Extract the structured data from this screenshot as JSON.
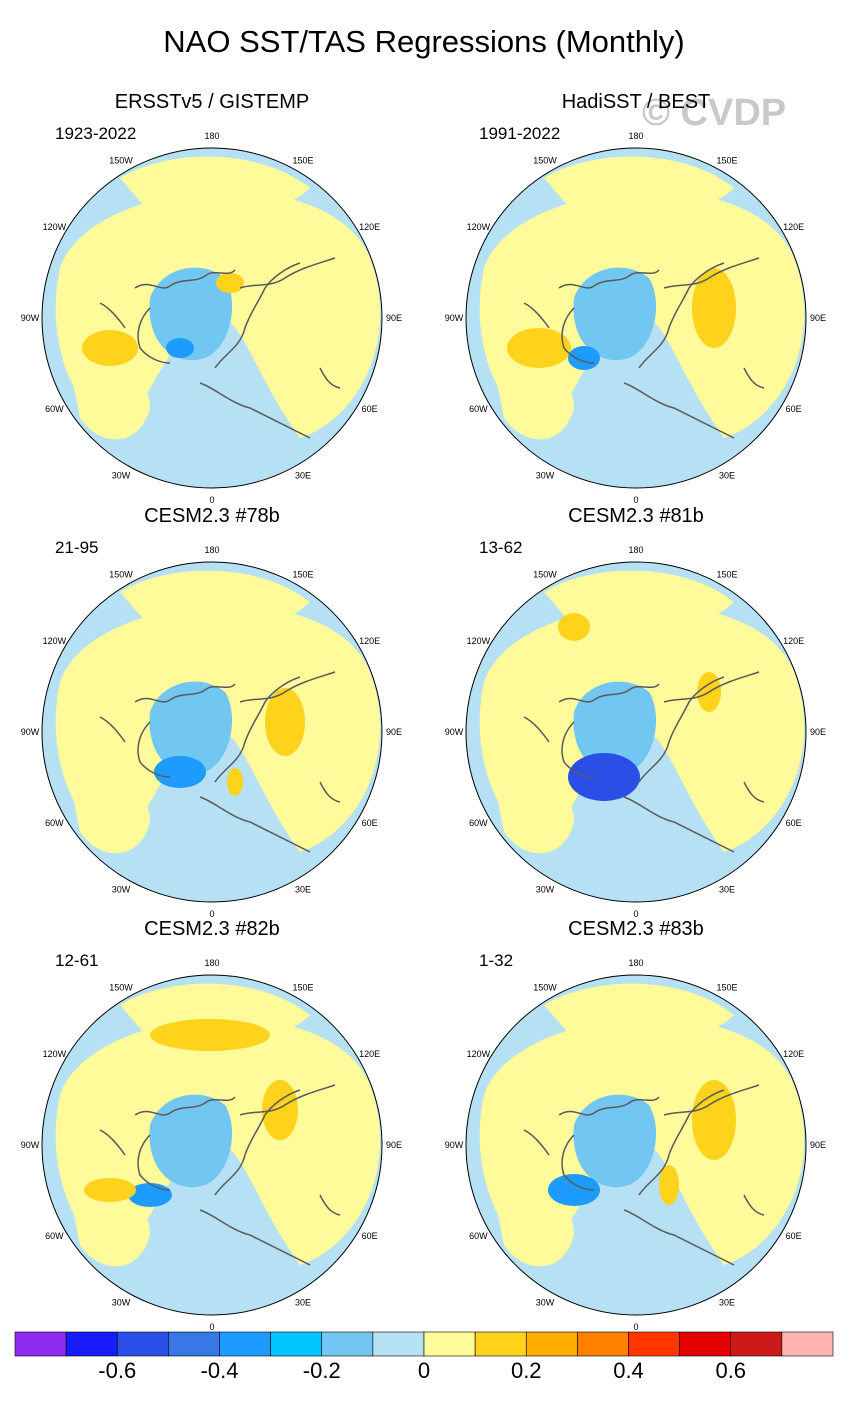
{
  "title": "NAO SST/TAS Regressions (Monthly)",
  "watermark": "© CVDP",
  "panels": [
    {
      "title": "ERSSTv5 / GISTEMP",
      "period": "1923-2022"
    },
    {
      "title": "HadiSST / BEST",
      "period": "1991-2022"
    },
    {
      "title": "CESM2.3 #78b",
      "period": "21-95"
    },
    {
      "title": "CESM2.3 #81b",
      "period": "13-62"
    },
    {
      "title": "CESM2.3 #82b",
      "period": "12-61"
    },
    {
      "title": "CESM2.3 #83b",
      "period": "1-32"
    }
  ],
  "longitude_labels": [
    "180",
    "150E",
    "120E",
    "90E",
    "60E",
    "30E",
    "0",
    "30W",
    "60W",
    "90W",
    "120W",
    "150W"
  ],
  "colorbar": {
    "colors": [
      "#8f2cf0",
      "#1a1aff",
      "#2b4fe6",
      "#3a77e6",
      "#1e9bff",
      "#00c3ff",
      "#72c6f2",
      "#b6e0f4",
      "#fffb9a",
      "#ffd21c",
      "#ffab00",
      "#ff7f00",
      "#ff3600",
      "#e60000",
      "#cc1a1a",
      "#ffb3b3"
    ],
    "tick_labels": [
      "-0.6",
      "-0.4",
      "-0.2",
      "0",
      "0.2",
      "0.4",
      "0.6"
    ]
  }
}
